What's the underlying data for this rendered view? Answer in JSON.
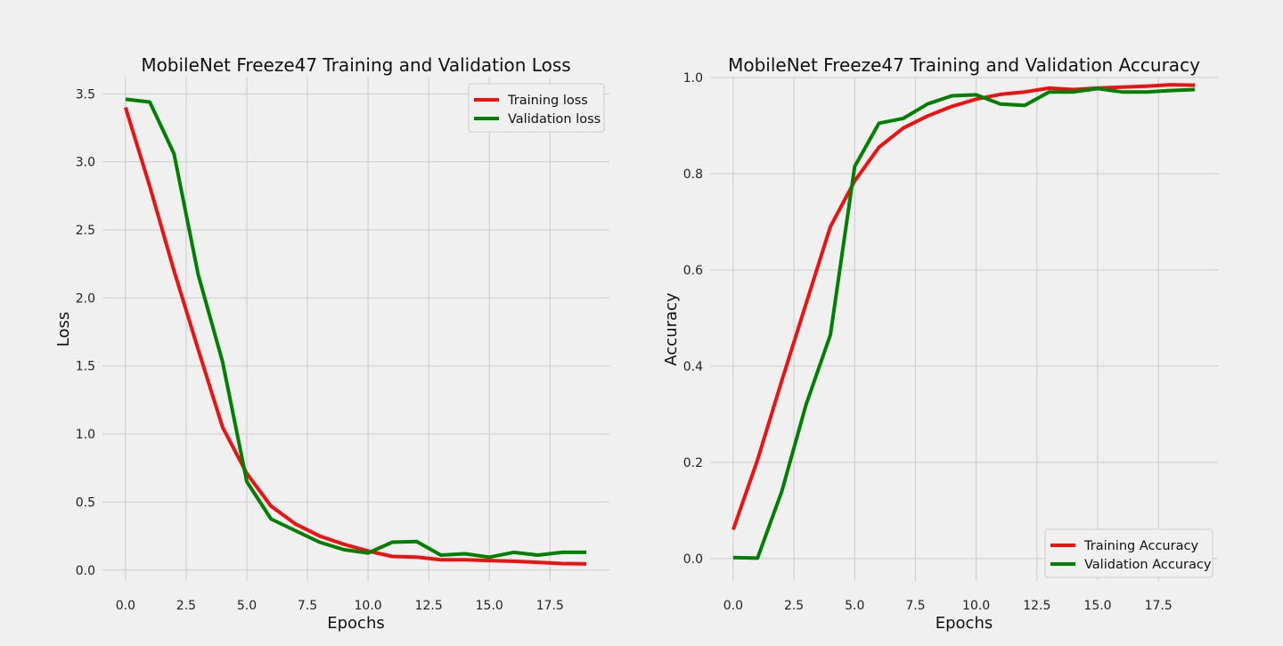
{
  "chart_data": [
    {
      "type": "line",
      "title": "MobileNet Freeze47 Training and Validation Loss",
      "xlabel": "Epochs",
      "ylabel": "Loss",
      "xlim": [
        -0.95,
        19.95
      ],
      "ylim": [
        -0.08,
        3.62
      ],
      "x_ticks": [
        0.0,
        2.5,
        5.0,
        7.5,
        10.0,
        12.5,
        15.0,
        17.5
      ],
      "x_tick_labels": [
        "0.0",
        "2.5",
        "5.0",
        "7.5",
        "10.0",
        "12.5",
        "15.0",
        "17.5"
      ],
      "y_ticks": [
        0.0,
        0.5,
        1.0,
        1.5,
        2.0,
        2.5,
        3.0,
        3.5
      ],
      "y_tick_labels": [
        "0.0",
        "0.5",
        "1.0",
        "1.5",
        "2.0",
        "2.5",
        "3.0",
        "3.5"
      ],
      "grid": true,
      "legend_position": "top-right",
      "x": [
        0,
        1,
        2,
        3,
        4,
        5,
        6,
        7,
        8,
        9,
        10,
        11,
        12,
        13,
        14,
        15,
        16,
        17,
        18,
        19
      ],
      "series": [
        {
          "name": "Training loss",
          "color": "#ee1111",
          "values": [
            3.4,
            2.82,
            2.2,
            1.62,
            1.05,
            0.71,
            0.47,
            0.34,
            0.25,
            0.19,
            0.14,
            0.1,
            0.095,
            0.075,
            0.075,
            0.07,
            0.065,
            0.057,
            0.048,
            0.045
          ]
        },
        {
          "name": "Validation loss",
          "color": "#008000",
          "values": [
            3.46,
            3.44,
            3.06,
            2.17,
            1.53,
            0.65,
            0.375,
            0.29,
            0.205,
            0.15,
            0.125,
            0.205,
            0.21,
            0.11,
            0.12,
            0.095,
            0.13,
            0.11,
            0.13,
            0.13
          ]
        }
      ]
    },
    {
      "type": "line",
      "title": "MobileNet Freeze47 Training and Validation Accuracy",
      "xlabel": "Epochs",
      "ylabel": "Accuracy",
      "xlim": [
        -0.95,
        19.95
      ],
      "ylim": [
        -0.0465,
        1.0
      ],
      "x_ticks": [
        0.0,
        2.5,
        5.0,
        7.5,
        10.0,
        12.5,
        15.0,
        17.5
      ],
      "x_tick_labels": [
        "0.0",
        "2.5",
        "5.0",
        "7.5",
        "10.0",
        "12.5",
        "15.0",
        "17.5"
      ],
      "y_ticks": [
        0.0,
        0.2,
        0.4,
        0.6,
        0.8,
        1.0
      ],
      "y_tick_labels": [
        "0.0",
        "0.2",
        "0.4",
        "0.6",
        "0.8",
        "1.0"
      ],
      "grid": true,
      "legend_position": "bottom-right",
      "x": [
        0,
        1,
        2,
        3,
        4,
        5,
        6,
        7,
        8,
        9,
        10,
        11,
        12,
        13,
        14,
        15,
        16,
        17,
        18,
        19
      ],
      "series": [
        {
          "name": "Training Accuracy",
          "color": "#ee1111",
          "values": [
            0.06,
            0.205,
            0.37,
            0.53,
            0.69,
            0.785,
            0.855,
            0.895,
            0.92,
            0.94,
            0.955,
            0.965,
            0.97,
            0.978,
            0.975,
            0.978,
            0.98,
            0.982,
            0.985,
            0.984
          ]
        },
        {
          "name": "Validation Accuracy",
          "color": "#008000",
          "values": [
            0.002,
            0.001,
            0.14,
            0.32,
            0.465,
            0.815,
            0.905,
            0.915,
            0.945,
            0.962,
            0.964,
            0.945,
            0.942,
            0.97,
            0.97,
            0.977,
            0.97,
            0.97,
            0.973,
            0.975
          ]
        }
      ]
    }
  ]
}
